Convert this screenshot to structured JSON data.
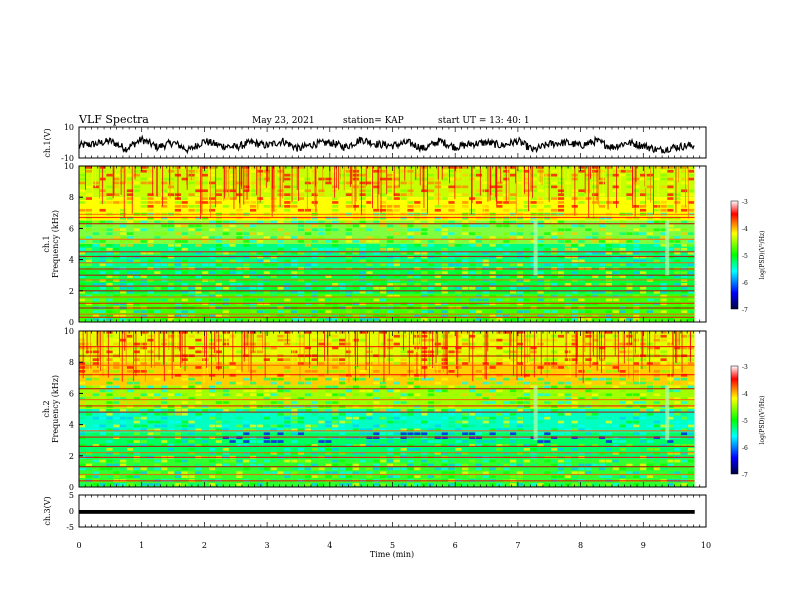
{
  "header": {
    "title": "VLF Spectra",
    "date": "May 23, 2021",
    "station": "station= KAP",
    "start": "start  UT  =   13: 40: 1"
  },
  "chart_data": [
    {
      "id": "ch1_waveform",
      "type": "line",
      "ylabel": "ch.1(V)",
      "ylim": [
        -10,
        10
      ],
      "yticks": [
        "10",
        "-10"
      ],
      "xlim": [
        0,
        10
      ],
      "x_end": 9.82,
      "description_values": {
        "x": [
          0,
          0.25,
          0.5,
          0.75,
          1,
          1.25,
          1.5,
          1.75,
          2,
          2.25,
          2.5,
          2.75,
          3,
          3.25,
          3.5,
          3.75,
          4,
          4.25,
          4.5,
          4.75,
          5,
          5.25,
          5.5,
          5.75,
          6,
          6.25,
          6.5,
          6.75,
          7,
          7.25,
          7.5,
          7.75,
          8,
          8.25,
          8.5,
          8.75,
          9,
          9.25,
          9.5,
          9.75,
          9.82
        ],
        "y": [
          -2,
          -1,
          1,
          -4,
          2,
          -3,
          0,
          -5,
          1,
          -2,
          -3,
          0,
          -2,
          1,
          -4,
          -1,
          0,
          -3,
          2,
          -1,
          -2,
          0,
          -4,
          1,
          -3,
          -1,
          0,
          -2,
          1,
          -5,
          -1,
          0,
          -2,
          1,
          -3,
          0,
          -2,
          -5,
          -3,
          -2,
          -2
        ]
      }
    },
    {
      "id": "ch1_spectrogram",
      "type": "heatmap",
      "ylabel_top": "ch.1",
      "ylabel": "Frequency (kHz)",
      "ylim": [
        0,
        10
      ],
      "yticks": [
        "0",
        "2",
        "4",
        "6",
        "8",
        "10"
      ],
      "xlim": [
        0,
        10
      ],
      "x_end": 9.82,
      "lines_khz": [
        0.3,
        0.5,
        0.9,
        1.2,
        1.6,
        2.0,
        2.3,
        2.7,
        3.0,
        3.4,
        3.8,
        4.2,
        4.5,
        5.3,
        6.3,
        6.7,
        6.9
      ],
      "colorbar": {
        "label": "log(PSD)(V²/Hz)",
        "range": [
          -7,
          -3
        ],
        "ticks": [
          "-3",
          "-4",
          "-5",
          "-6",
          "-7"
        ]
      }
    },
    {
      "id": "ch2_spectrogram",
      "type": "heatmap",
      "ylabel_top": "ch.2",
      "ylabel": "Frequency (kHz)",
      "ylim": [
        0,
        10
      ],
      "yticks": [
        "0",
        "2",
        "4",
        "6",
        "8",
        "10"
      ],
      "xlim": [
        0,
        10
      ],
      "x_end": 9.82,
      "lines_khz": [
        0.4,
        0.8,
        1.3,
        1.9,
        2.2,
        2.6,
        3.2,
        3.6,
        4.8,
        5.2,
        5.6,
        6.3,
        7.2,
        7.8,
        8.4,
        9.0
      ],
      "colorbar": {
        "label": "log(PSD)(V²/Hz)",
        "range": [
          -7,
          -3
        ],
        "ticks": [
          "-3",
          "-4",
          "-5",
          "-6",
          "-7"
        ]
      }
    },
    {
      "id": "ch3_waveform",
      "type": "line",
      "ylabel": "ch.3(V)",
      "ylim": [
        -5,
        5
      ],
      "yticks": [
        "5",
        "0",
        "-5"
      ],
      "xlim": [
        0,
        10
      ],
      "x_end": 9.82,
      "band": [
        -0.9,
        0.3
      ]
    }
  ],
  "xaxis": {
    "label": "Time (min)",
    "ticks": [
      "0",
      "1",
      "2",
      "3",
      "4",
      "5",
      "6",
      "7",
      "8",
      "9",
      "10"
    ]
  },
  "colors": {
    "line": "#000000",
    "colormap": [
      "#000040",
      "#0000ff",
      "#00ffff",
      "#00ff00",
      "#ffff00",
      "#ff0000",
      "#ffffff"
    ]
  }
}
